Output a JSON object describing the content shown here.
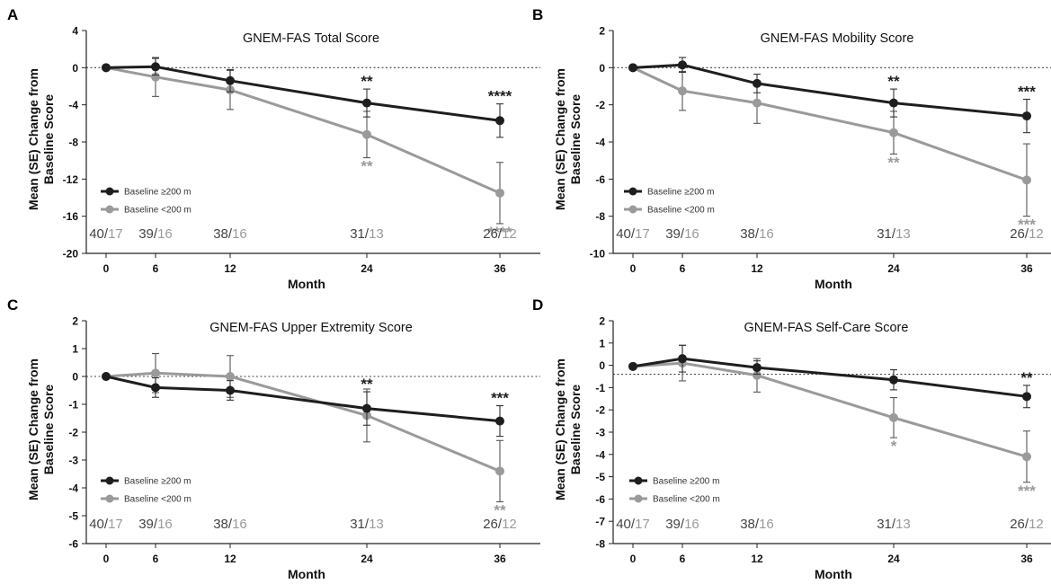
{
  "colors": {
    "series_dark": "#1e1e1e",
    "series_light": "#9a9a9a",
    "axis": "#222222",
    "reference_line": "#444444"
  },
  "chart_data": [
    {
      "panel": "A",
      "type": "line",
      "title": "GNEM-FAS Total Score",
      "xlabel": "Month",
      "ylabel": "Mean (SE) Change from Baseline Score",
      "x": [
        0,
        6,
        12,
        24,
        36
      ],
      "ylim": [
        -20,
        4
      ],
      "yticks": [
        4,
        0,
        -4,
        -8,
        -12,
        -16,
        -20
      ],
      "reference_y": 0,
      "legend_position": "lower-left",
      "series": [
        {
          "name": "Baseline ≥200 m",
          "color_key": "series_dark",
          "values": [
            0,
            0.1,
            -1.4,
            -3.8,
            -5.7
          ],
          "err": [
            0,
            0.9,
            1.2,
            1.5,
            1.8
          ],
          "significance": [
            "",
            "",
            "",
            "**",
            "****"
          ]
        },
        {
          "name": "Baseline <200 m",
          "color_key": "series_light",
          "values": [
            0,
            -1.0,
            -2.4,
            -7.2,
            -13.5
          ],
          "err": [
            0,
            2.1,
            2.1,
            2.5,
            3.3
          ],
          "significance": [
            "",
            "",
            "",
            "**",
            "****"
          ]
        }
      ],
      "n_counts": [
        {
          "a": "40",
          "b": "17"
        },
        {
          "a": "39",
          "b": "16"
        },
        {
          "a": "38",
          "b": "16"
        },
        {
          "a": "31",
          "b": "13"
        },
        {
          "a": "26",
          "b": "12"
        }
      ]
    },
    {
      "panel": "B",
      "type": "line",
      "title": "GNEM-FAS Mobility Score",
      "xlabel": "Month",
      "ylabel": "Mean (SE) Change from Baseline Score",
      "x": [
        0,
        6,
        12,
        24,
        36
      ],
      "ylim": [
        -10,
        2
      ],
      "yticks": [
        2,
        0,
        -2,
        -4,
        -6,
        -8,
        -10
      ],
      "reference_y": 0,
      "legend_position": "lower-left",
      "series": [
        {
          "name": "Baseline ≥200 m",
          "color_key": "series_dark",
          "values": [
            0,
            0.15,
            -0.85,
            -1.9,
            -2.6
          ],
          "err": [
            0,
            0.4,
            0.5,
            0.75,
            0.9
          ],
          "significance": [
            "",
            "",
            "",
            "**",
            "***"
          ]
        },
        {
          "name": "Baseline <200 m",
          "color_key": "series_light",
          "values": [
            0,
            -1.25,
            -1.9,
            -3.5,
            -6.05
          ],
          "err": [
            0,
            1.05,
            1.1,
            1.15,
            1.95
          ],
          "significance": [
            "",
            "",
            "",
            "**",
            "***"
          ]
        }
      ],
      "n_counts": [
        {
          "a": "40",
          "b": "17"
        },
        {
          "a": "39",
          "b": "16"
        },
        {
          "a": "38",
          "b": "16"
        },
        {
          "a": "31",
          "b": "13"
        },
        {
          "a": "26",
          "b": "12"
        }
      ]
    },
    {
      "panel": "C",
      "type": "line",
      "title": "GNEM-FAS Upper Extremity Score",
      "xlabel": "Month",
      "ylabel": "Mean (SE) Change from Baseline Score",
      "x": [
        0,
        6,
        12,
        24,
        36
      ],
      "ylim": [
        -6,
        2
      ],
      "yticks": [
        2,
        1,
        0,
        -1,
        -2,
        -3,
        -4,
        -5,
        -6
      ],
      "reference_y": 0,
      "legend_position": "lower-left",
      "series": [
        {
          "name": "Baseline ≥200 m",
          "color_key": "series_dark",
          "values": [
            0,
            -0.4,
            -0.5,
            -1.15,
            -1.6
          ],
          "err": [
            0,
            0.35,
            0.35,
            0.6,
            0.55
          ],
          "significance": [
            "",
            "",
            "",
            "**",
            "***"
          ]
        },
        {
          "name": "Baseline <200 m",
          "color_key": "series_light",
          "values": [
            0,
            0.12,
            0,
            -1.4,
            -3.4
          ],
          "err": [
            0,
            0.7,
            0.75,
            0.95,
            1.1
          ],
          "significance": [
            "",
            "",
            "",
            "",
            "**"
          ]
        }
      ],
      "n_counts": [
        {
          "a": "40",
          "b": "17"
        },
        {
          "a": "39",
          "b": "16"
        },
        {
          "a": "38",
          "b": "16"
        },
        {
          "a": "31",
          "b": "13"
        },
        {
          "a": "26",
          "b": "12"
        }
      ]
    },
    {
      "panel": "D",
      "type": "line",
      "title": "GNEM-FAS Self-Care Score",
      "xlabel": "Month",
      "ylabel": "Mean (SE) Change from Baseline Score",
      "x": [
        0,
        6,
        12,
        24,
        36
      ],
      "ylim": [
        -8,
        2
      ],
      "yticks": [
        2,
        1,
        0,
        -1,
        -2,
        -3,
        -4,
        -5,
        -6,
        -7,
        -8
      ],
      "reference_y": -0.4,
      "legend_position": "lower-left",
      "series": [
        {
          "name": "Baseline ≥200 m",
          "color_key": "series_dark",
          "values": [
            -0.05,
            0.3,
            -0.1,
            -0.65,
            -1.4
          ],
          "err": [
            0,
            0.6,
            0.3,
            0.45,
            0.5
          ],
          "significance": [
            "",
            "",
            "",
            "",
            "**"
          ]
        },
        {
          "name": "Baseline <200 m",
          "color_key": "series_light",
          "values": [
            -0.05,
            0.1,
            -0.45,
            -2.35,
            -4.1
          ],
          "err": [
            0,
            0.8,
            0.75,
            0.9,
            1.15
          ],
          "significance": [
            "",
            "",
            "",
            "*",
            "***"
          ]
        }
      ],
      "n_counts": [
        {
          "a": "40",
          "b": "17"
        },
        {
          "a": "39",
          "b": "16"
        },
        {
          "a": "38",
          "b": "16"
        },
        {
          "a": "31",
          "b": "13"
        },
        {
          "a": "26",
          "b": "12"
        }
      ]
    }
  ]
}
